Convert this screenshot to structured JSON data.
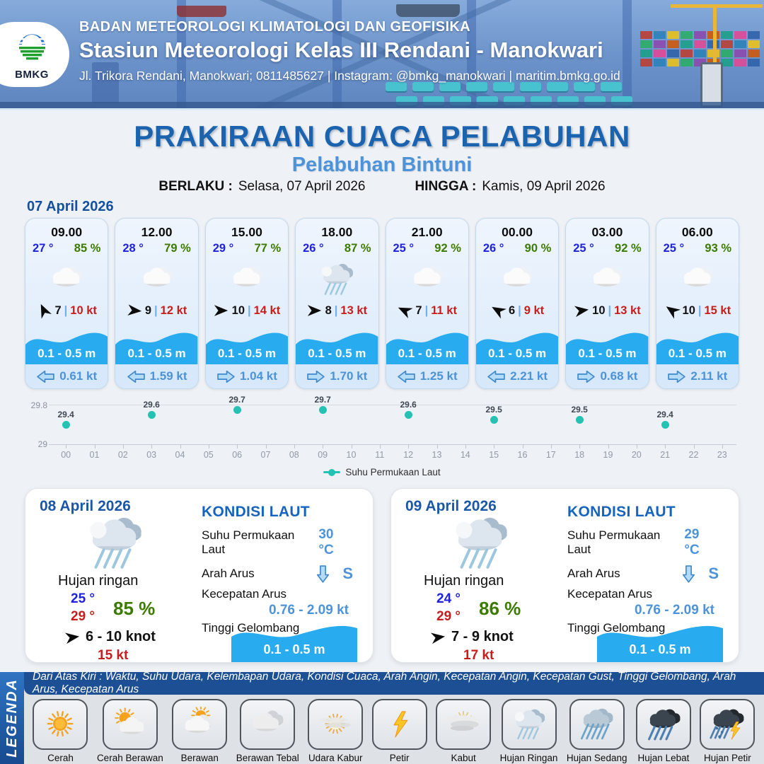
{
  "header": {
    "logo_text": "BMKG",
    "org": "BADAN METEOROLOGI KLIMATOLOGI DAN GEOFISIKA",
    "station": "Stasiun Meteorologi Kelas III Rendani - Manokwari",
    "contact": "Jl. Trikora Rendani, Manokwari; 0811485627 | Instagram: @bmkg_manokwari | maritim.bmkg.go.id"
  },
  "title": {
    "main": "PRAKIRAAN CUACA PELABUHAN",
    "subtitle": "Pelabuhan Bintuni",
    "berlaku_label": "BERLAKU :",
    "berlaku_value": "Selasa, 07 April 2026",
    "hingga_label": "HINGGA :",
    "hingga_value": "Kamis, 09 April 2026"
  },
  "forecast": {
    "date_heading": "07 April 2026",
    "cards": [
      {
        "time": "09.00",
        "temp": "27 °",
        "humidity": "85 %",
        "icon": "cloud",
        "wind_rotation": -115,
        "wind_speed": "7",
        "separator": "|",
        "gust": "10 kt",
        "wave": "0.1 - 0.5 m",
        "current_dir": "left",
        "current_speed": "0.61 kt"
      },
      {
        "time": "12.00",
        "temp": "28 °",
        "humidity": "79 %",
        "icon": "cloud",
        "wind_rotation": 5,
        "wind_speed": "9",
        "separator": "|",
        "gust": "12 kt",
        "wave": "0.1 - 0.5 m",
        "current_dir": "left",
        "current_speed": "1.59 kt"
      },
      {
        "time": "15.00",
        "temp": "29 °",
        "humidity": "77 %",
        "icon": "cloud",
        "wind_rotation": 0,
        "wind_speed": "10",
        "separator": "|",
        "gust": "14 kt",
        "wave": "0.1 - 0.5 m",
        "current_dir": "right",
        "current_speed": "1.04 kt"
      },
      {
        "time": "18.00",
        "temp": "26 °",
        "humidity": "87 %",
        "icon": "rain-light",
        "wind_rotation": 0,
        "wind_speed": "8",
        "separator": "|",
        "gust": "13 kt",
        "wave": "0.1 - 0.5 m",
        "current_dir": "right",
        "current_speed": "1.70 kt"
      },
      {
        "time": "21.00",
        "temp": "25 °",
        "humidity": "92 %",
        "icon": "cloud",
        "wind_rotation": -155,
        "wind_speed": "7",
        "separator": "|",
        "gust": "11 kt",
        "wave": "0.1 - 0.5 m",
        "current_dir": "left",
        "current_speed": "1.25 kt"
      },
      {
        "time": "00.00",
        "temp": "26 °",
        "humidity": "90 %",
        "icon": "cloud",
        "wind_rotation": -150,
        "wind_speed": "6",
        "separator": "|",
        "gust": "9 kt",
        "wave": "0.1 - 0.5 m",
        "current_dir": "left",
        "current_speed": "2.21 kt"
      },
      {
        "time": "03.00",
        "temp": "25 °",
        "humidity": "92 %",
        "icon": "cloud",
        "wind_rotation": -8,
        "wind_speed": "10",
        "separator": "|",
        "gust": "13 kt",
        "wave": "0.1 - 0.5 m",
        "current_dir": "right",
        "current_speed": "0.68 kt"
      },
      {
        "time": "06.00",
        "temp": "25 °",
        "humidity": "93 %",
        "icon": "cloud",
        "wind_rotation": -145,
        "wind_speed": "10",
        "separator": "|",
        "gust": "15 kt",
        "wave": "0.1 - 0.5 m",
        "current_dir": "right",
        "current_speed": "2.11 kt"
      }
    ]
  },
  "chart_data": {
    "type": "scatter",
    "title": "",
    "x": [
      0,
      3,
      6,
      9,
      12,
      15,
      18,
      21
    ],
    "values": [
      29.4,
      29.6,
      29.7,
      29.7,
      29.6,
      29.5,
      29.5,
      29.4
    ],
    "x_ticks": [
      "00",
      "01",
      "02",
      "03",
      "04",
      "05",
      "06",
      "07",
      "08",
      "09",
      "10",
      "11",
      "12",
      "13",
      "14",
      "15",
      "16",
      "17",
      "18",
      "19",
      "20",
      "21",
      "22",
      "23"
    ],
    "y_ticks": [
      "29.8",
      "29"
    ],
    "ylim": [
      29,
      29.8
    ],
    "grid": true,
    "legend": "Suhu Permukaan Laut",
    "legend_position": "bottom-center",
    "dot_color": "#25c2b4"
  },
  "days": [
    {
      "date": "08 April 2026",
      "icon": "rain-light",
      "condition": "Hujan ringan",
      "temp_min": "25 °",
      "temp_max": "29 °",
      "humidity": "85 %",
      "wind": "6  - 10 knot",
      "gust": "15 kt",
      "sea": {
        "title": "KONDISI LAUT",
        "sst_label": "Suhu Permukaan Laut",
        "sst": "30 °C",
        "arah_label": "Arah Arus",
        "arah": "S",
        "kec_label": "Kecepatan Arus",
        "kec": "0.76  - 2.09 kt",
        "gel_label": "Tinggi Gelombang",
        "gel": "0.1 - 0.5 m"
      }
    },
    {
      "date": "09 April 2026",
      "icon": "rain-light",
      "condition": "Hujan ringan",
      "temp_min": "24 °",
      "temp_max": "29 °",
      "humidity": "86 %",
      "wind": "7  - 9 knot",
      "gust": "17 kt",
      "sea": {
        "title": "KONDISI LAUT",
        "sst_label": "Suhu Permukaan Laut",
        "sst": "29 °C",
        "arah_label": "Arah Arus",
        "arah": "S",
        "kec_label": "Kecepatan Arus",
        "kec": "0.76  - 2.09 kt",
        "gel_label": "Tinggi Gelombang",
        "gel": "0.1 - 0.5 m"
      }
    }
  ],
  "legend": {
    "vertical_label": "LEGENDA",
    "description": "Dari Atas Kiri : Waktu, Suhu Udara, Kelembapan Udara, Kondisi Cuaca, Arah Angin, Kecepatan Angin, Kecepatan Gust, Tinggi Gelombang, Arah Arus, Kecepatan Arus",
    "items": [
      {
        "label": "Cerah",
        "icon": "sun"
      },
      {
        "label": "Cerah Berawan",
        "icon": "sun-cloud"
      },
      {
        "label": "Berawan",
        "icon": "cloud-sun"
      },
      {
        "label": "Berawan Tebal",
        "icon": "clouds"
      },
      {
        "label": "Udara Kabur",
        "icon": "haze"
      },
      {
        "label": "Petir",
        "icon": "bolt"
      },
      {
        "label": "Kabut",
        "icon": "fog"
      },
      {
        "label": "Hujan Ringan",
        "icon": "rain-light"
      },
      {
        "label": "Hujan Sedang",
        "icon": "rain-medium"
      },
      {
        "label": "Hujan Lebat",
        "icon": "rain-heavy"
      },
      {
        "label": "Hujan Petir",
        "icon": "rain-bolt"
      }
    ]
  },
  "colors": {
    "accent_blue": "#1b63ae",
    "subtitle_blue": "#4d93d9",
    "temp_blue": "#1e22dd",
    "humidity_green": "#3c7a00",
    "gust_red": "#c81d1d",
    "wave_cyan": "#29abf0",
    "chart_teal": "#25c2b4",
    "legend_bar_blue": "#1d4f94"
  }
}
